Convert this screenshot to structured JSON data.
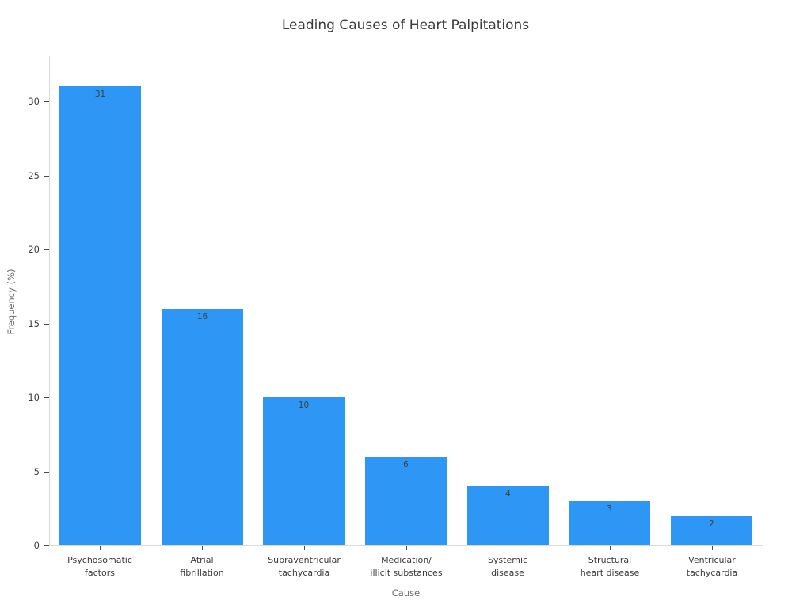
{
  "page": {
    "background_color": "#ffffff"
  },
  "chart_data": {
    "type": "bar",
    "title": "Leading Causes of Heart Palpitations",
    "xlabel": "Cause",
    "ylabel": "Frequency (%)",
    "categories": [
      "Psychosomatic\nfactors",
      "Atrial\nfibrillation",
      "Supraventricular\ntachycardia",
      "Medication/\nillicit substances",
      "Systemic\ndisease",
      "Structural\nheart disease",
      "Ventricular\ntachycardia"
    ],
    "values": [
      31,
      16,
      10,
      6,
      4,
      3,
      2
    ],
    "value_labels": [
      "31",
      "16",
      "10",
      "6",
      "4",
      "3",
      "2"
    ],
    "yticks": [
      0,
      5,
      10,
      15,
      20,
      25,
      30
    ],
    "ylim": [
      0,
      33
    ],
    "grid": false,
    "legend": null,
    "bar_color": "#2e96f5",
    "value_label_color": "#3f3f3f",
    "axis_line_color": "#d9d9d9",
    "tick_color": "#4a4a4a",
    "title_color": "#3a3a3a",
    "axis_title_color": "#6e6e6e"
  }
}
